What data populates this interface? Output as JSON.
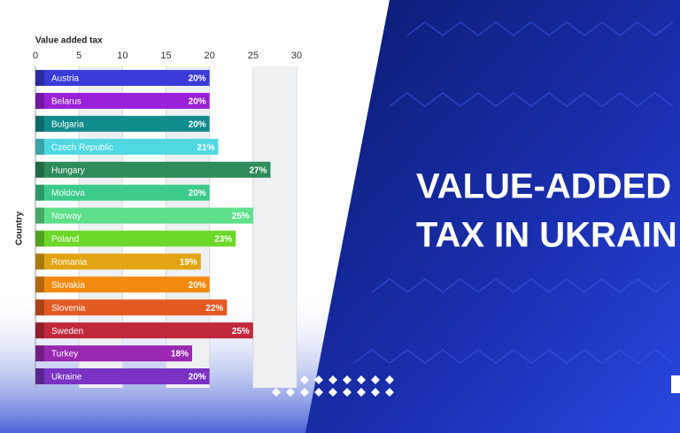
{
  "chart_data": {
    "type": "bar",
    "orientation": "horizontal",
    "title": "Value added tax",
    "y_label": "Country",
    "categories": [
      "Austria",
      "Belarus",
      "Bulgaria",
      "Czech Republic",
      "Hungary",
      "Moldova",
      "Norway",
      "Poland",
      "Romania",
      "Slovakia",
      "Slovenia",
      "Sweden",
      "Turkey",
      "Ukraine"
    ],
    "values": [
      20,
      20,
      20,
      21,
      27,
      20,
      25,
      23,
      19,
      20,
      22,
      25,
      18,
      20
    ],
    "value_labels": [
      "20%",
      "20%",
      "20%",
      "21%",
      "27%",
      "20%",
      "25%",
      "23%",
      "19%",
      "20%",
      "22%",
      "25%",
      "18%",
      "20%"
    ],
    "colors": [
      "#3a3ad8",
      "#9a1fd8",
      "#118c8c",
      "#4fd8e2",
      "#2e8c5c",
      "#3ccb8a",
      "#5ee08a",
      "#6bd82a",
      "#e2a412",
      "#f28a12",
      "#e25a22",
      "#c2283c",
      "#9a28b2",
      "#7a32c2"
    ],
    "xlim": [
      0,
      30
    ],
    "xticks": [
      0,
      5,
      10,
      15,
      20,
      25,
      30
    ],
    "grid": true
  },
  "banner": {
    "lines": [
      "VALUE-ADDED",
      "TAX IN UKRAIN"
    ]
  }
}
